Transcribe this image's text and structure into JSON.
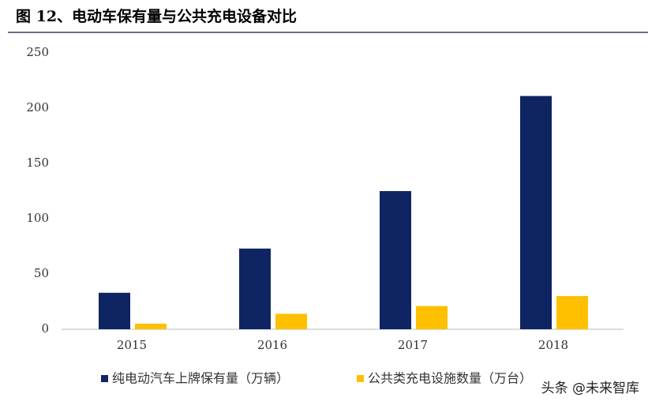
{
  "chart_data": {
    "type": "bar",
    "title": "图 12、电动车保有量与公共充电设备对比",
    "categories": [
      "2015",
      "2016",
      "2017",
      "2018"
    ],
    "series": [
      {
        "name": "纯电动汽车上牌保有量（万辆）",
        "color": "#0f2463",
        "values": [
          33,
          73,
          125,
          211
        ]
      },
      {
        "name": "公共类充电设施数量（万台）",
        "color": "#ffc000",
        "values": [
          5,
          14,
          21,
          30
        ]
      }
    ],
    "ylim": [
      0,
      250
    ],
    "yticks": [
      0,
      50,
      100,
      150,
      200,
      250
    ],
    "grid": false,
    "legend": "bottom",
    "watermark": "头条 @未来智库"
  }
}
